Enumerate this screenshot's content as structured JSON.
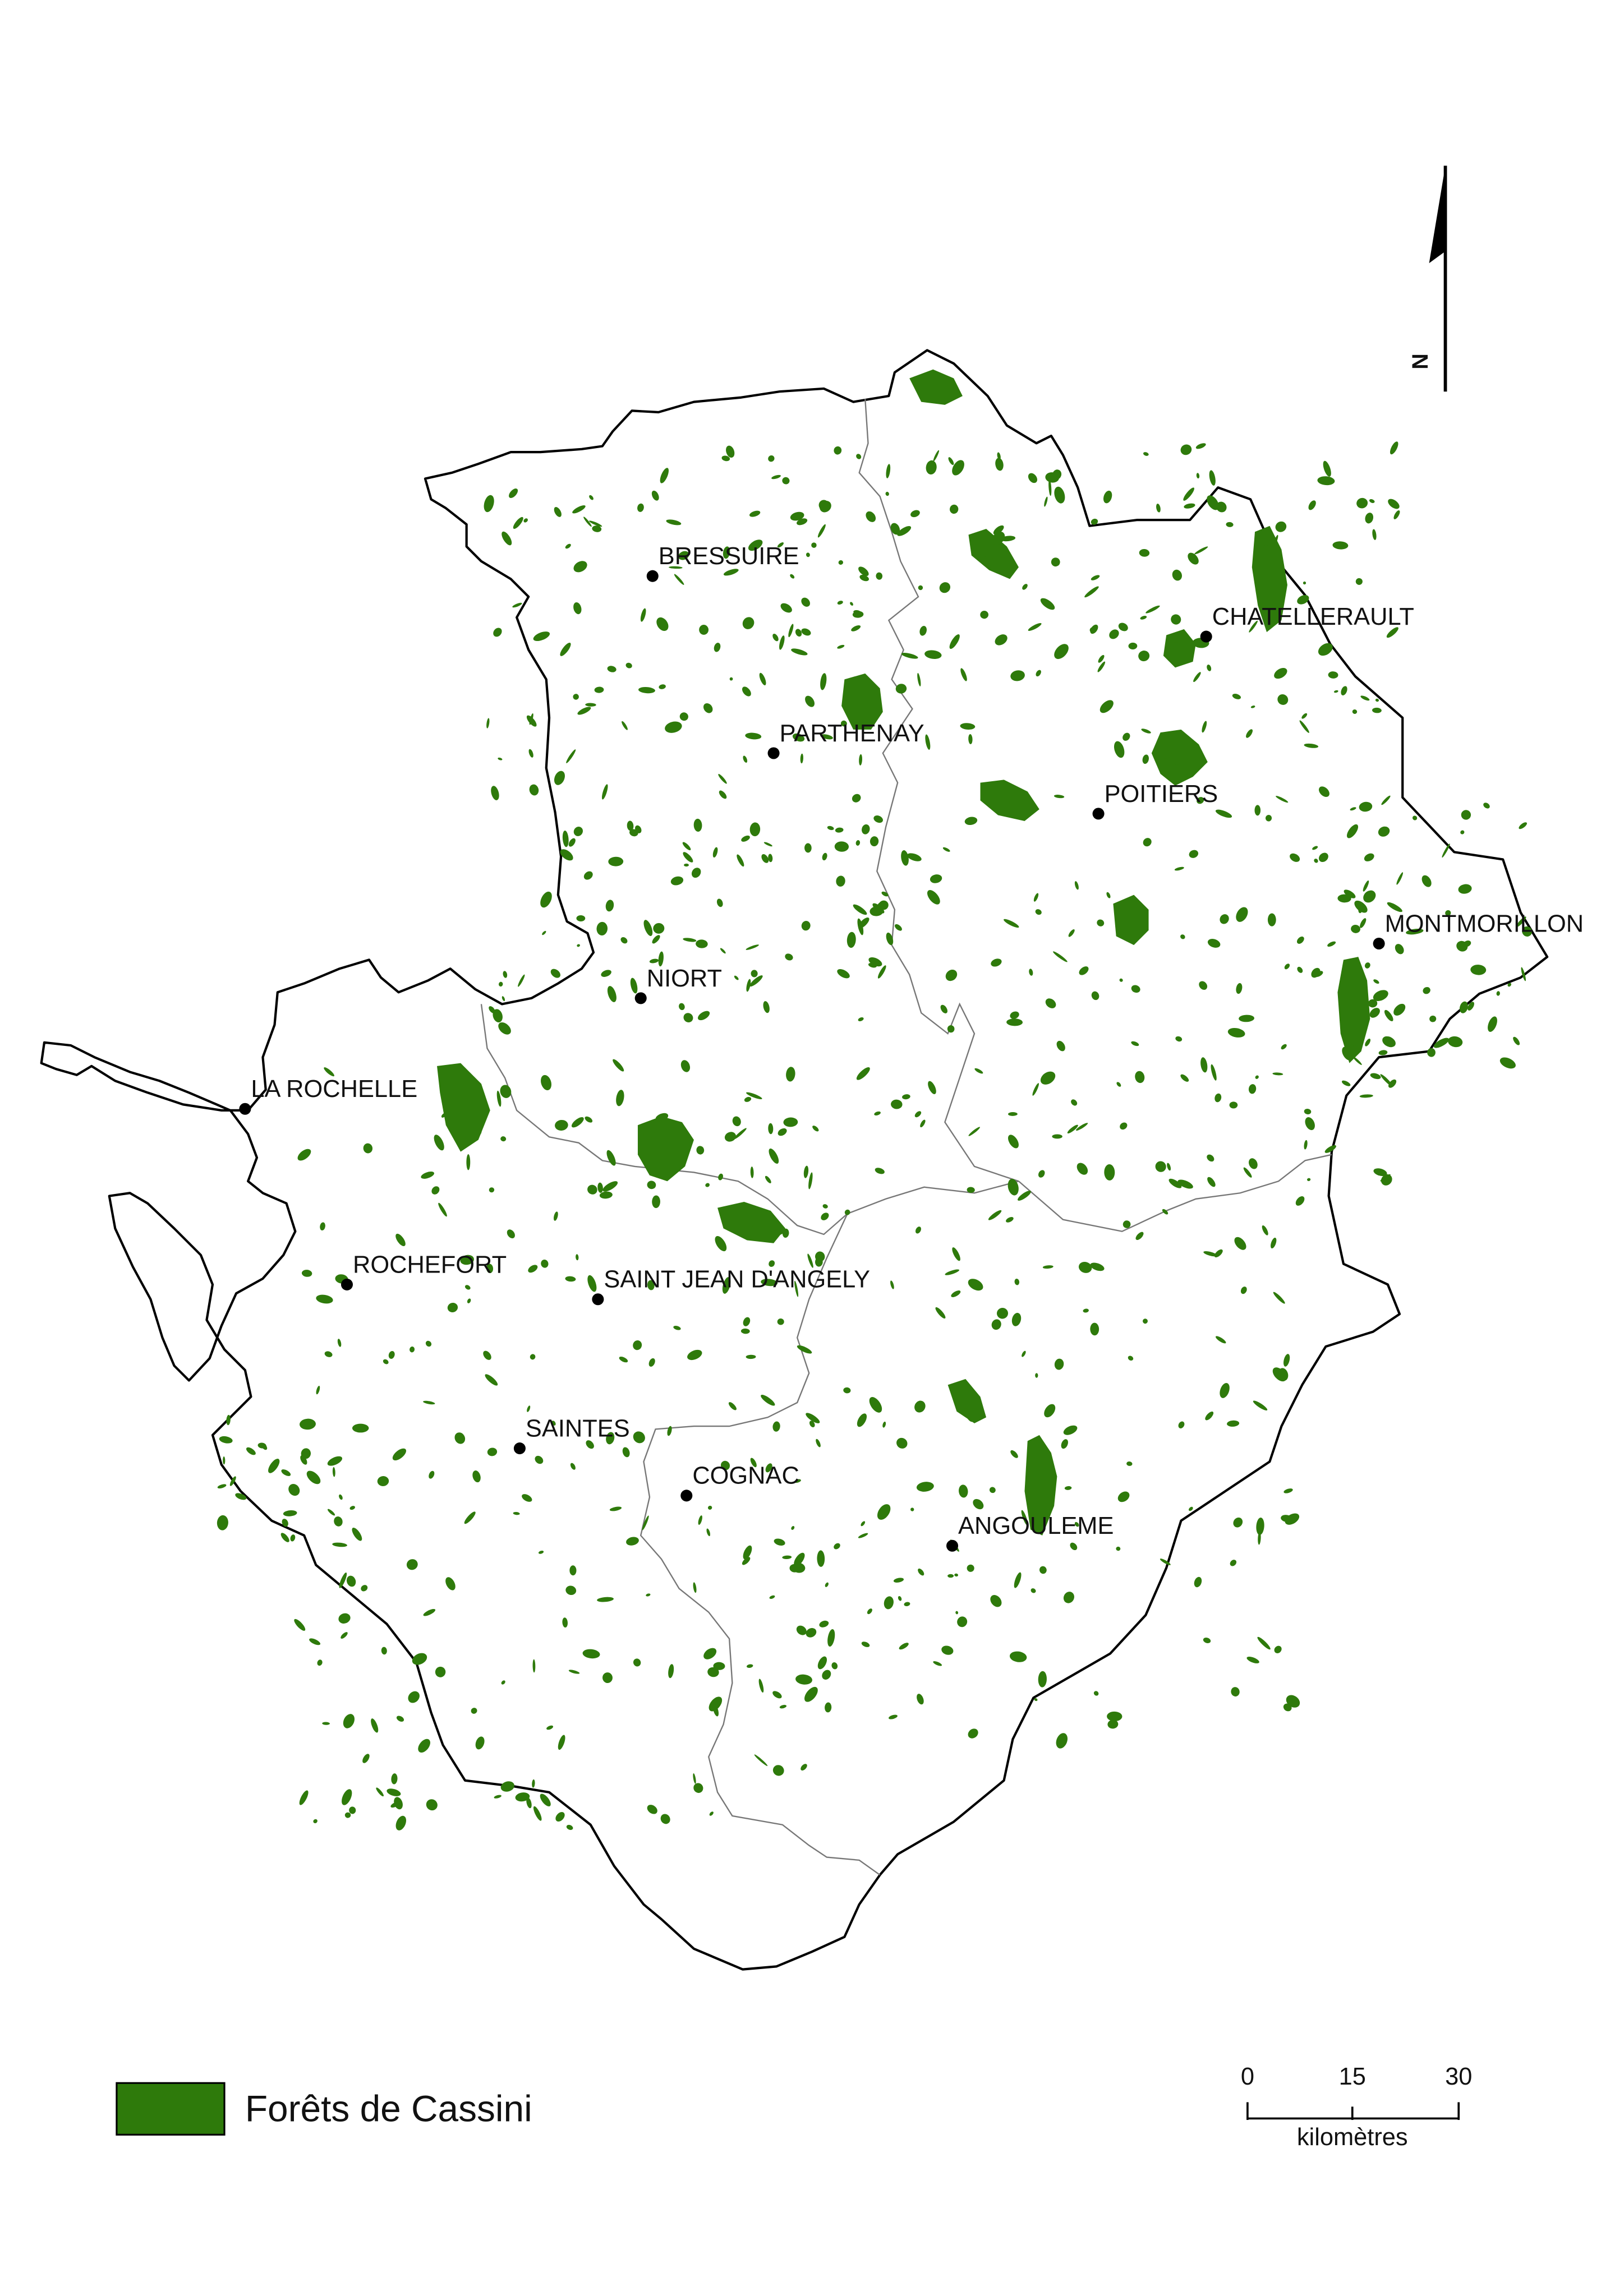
{
  "cities": [
    {
      "name": "BRESSUIRE"
    },
    {
      "name": "CHATELLERAULT"
    },
    {
      "name": "PARTHENAY"
    },
    {
      "name": "POITIERS"
    },
    {
      "name": "MONTMORILLON"
    },
    {
      "name": "NIORT"
    },
    {
      "name": "LA ROCHELLE"
    },
    {
      "name": "ROCHEFORT"
    },
    {
      "name": "SAINT JEAN D'ANGELY"
    },
    {
      "name": "SAINTES"
    },
    {
      "name": "COGNAC"
    },
    {
      "name": "ANGOULEME"
    }
  ],
  "legend": {
    "label": "Forêts de Cassini",
    "color": "#2e7a0b"
  },
  "scale_bar": {
    "ticks": [
      "0",
      "15",
      "30"
    ],
    "unit": "kilomètres"
  },
  "north_arrow": {
    "label": "N"
  },
  "colors": {
    "forest": "#2e7a0b",
    "outline": "#000000",
    "inner_border": "#777777",
    "background": "#ffffff"
  }
}
